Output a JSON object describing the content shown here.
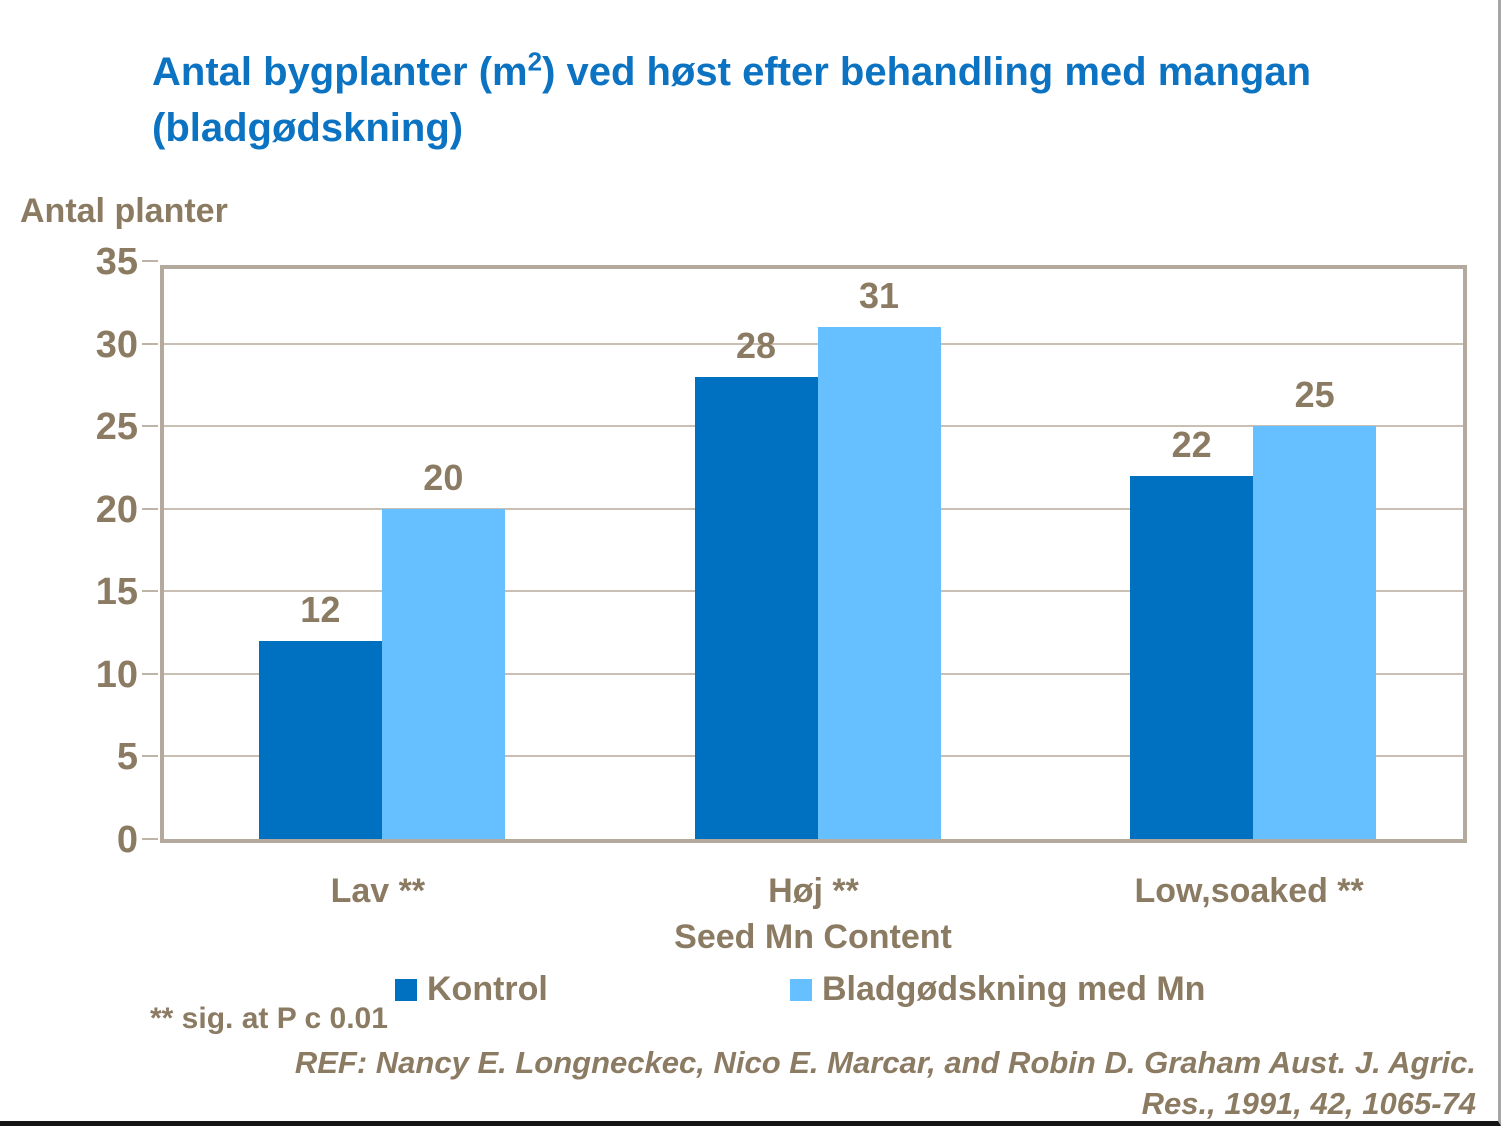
{
  "header": {
    "title": {
      "prefix": "Antal bygplanter (m",
      "superscript": "2",
      "suffix": ") ved høst efter behandling med mangan (bladgødskning)"
    }
  },
  "chart_data": {
    "type": "bar",
    "title": "Antal bygplanter (m2) ved høst efter behandling med mangan (bladgødskning)",
    "categories": [
      "Lav **",
      "Høj **",
      "Low,soaked **"
    ],
    "series": [
      {
        "name": "Kontrol",
        "color": "#0070c0",
        "values": [
          12,
          28,
          22
        ]
      },
      {
        "name": "Bladgødskning med Mn",
        "color": "#66bfff",
        "values": [
          20,
          31,
          25
        ]
      }
    ],
    "xlabel": "Seed Mn Content",
    "ylabel": "Antal planter",
    "ylim": [
      0,
      35
    ],
    "ytick_step": 5,
    "grid": true,
    "legend_position": "bottom",
    "value_labels_shown": true
  },
  "footnotes": {
    "significance": "** sig. at P c 0.01",
    "reference_line1": "REF: Nancy E. Longneckec, Nico E. Marcar, and Robin D. Graham Aust. J. Agric.",
    "reference_line2": "Res., 1991, 42, 1065-74"
  },
  "colors": {
    "title_text": "#0b73c2",
    "axis_text": "#8c7b63",
    "gridline": "#c9c0b3",
    "plot_border": "#b3a99c",
    "series_kontrol": "#0070c0",
    "series_bladgodskning": "#66bfff",
    "page_bottom_edge": "#151515"
  }
}
